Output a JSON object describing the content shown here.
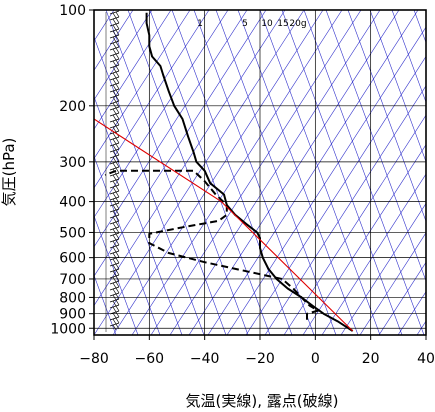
{
  "chart_data": {
    "type": "line",
    "chart_kind": "skew-T log-P thermodynamic diagram (emagram style)",
    "xlabel": "気温(実線), 露点(破線)",
    "ylabel": "気圧(hPa)",
    "x_ticks": [
      -80,
      -60,
      -40,
      -20,
      0,
      20,
      40
    ],
    "y_ticks": [
      100,
      200,
      300,
      400,
      500,
      600,
      700,
      800,
      900,
      1000
    ],
    "xlim": [
      -80,
      40
    ],
    "ylim": [
      1050,
      100
    ],
    "y_scale": "log",
    "grid": true,
    "mixing_ratio_labels": [
      "1",
      "5",
      "10",
      "15",
      "20g"
    ],
    "colors": {
      "temperature": "#000000",
      "dewpoint": "#000000",
      "parcel": "#e00000",
      "adiabats": "#3333cc",
      "grid": "#000000"
    },
    "series": [
      {
        "style": "solid",
        "points": [
          {
            "p": 1020,
            "t": 13.5
          },
          {
            "p": 1000,
            "t": 12
          },
          {
            "p": 950,
            "t": 8
          },
          {
            "p": 900,
            "t": 3
          },
          {
            "p": 850,
            "t": -1
          },
          {
            "p": 800,
            "t": -5
          },
          {
            "p": 750,
            "t": -10
          },
          {
            "p": 700,
            "t": -14
          },
          {
            "p": 650,
            "t": -17
          },
          {
            "p": 600,
            "t": -19
          },
          {
            "p": 560,
            "t": -20
          },
          {
            "p": 520,
            "t": -20
          },
          {
            "p": 500,
            "t": -21
          },
          {
            "p": 470,
            "t": -25
          },
          {
            "p": 440,
            "t": -29
          },
          {
            "p": 410,
            "t": -32
          },
          {
            "p": 380,
            "t": -33
          },
          {
            "p": 350,
            "t": -38
          },
          {
            "p": 320,
            "t": -40
          },
          {
            "p": 300,
            "t": -43
          },
          {
            "p": 280,
            "t": -44
          },
          {
            "p": 250,
            "t": -46
          },
          {
            "p": 220,
            "t": -48
          },
          {
            "p": 200,
            "t": -51
          },
          {
            "p": 180,
            "t": -53
          },
          {
            "p": 160,
            "t": -55
          },
          {
            "p": 150,
            "t": -56
          },
          {
            "p": 140,
            "t": -59
          },
          {
            "p": 130,
            "t": -60
          },
          {
            "p": 120,
            "t": -60
          },
          {
            "p": 110,
            "t": -61
          },
          {
            "p": 102,
            "t": -61
          }
        ]
      },
      {
        "style": "dashed",
        "points": [
          {
            "p": 940,
            "t": -3
          },
          {
            "p": 900,
            "t": -3
          },
          {
            "p": 880,
            "t": 1
          },
          {
            "p": 850,
            "t": -2
          },
          {
            "p": 800,
            "t": -5
          },
          {
            "p": 750,
            "t": -8
          },
          {
            "p": 700,
            "t": -12
          },
          {
            "p": 620,
            "t": -40
          },
          {
            "p": 580,
            "t": -53
          },
          {
            "p": 540,
            "t": -60
          },
          {
            "p": 505,
            "t": -60
          },
          {
            "p": 480,
            "t": -47
          },
          {
            "p": 460,
            "t": -35
          },
          {
            "p": 440,
            "t": -32
          },
          {
            "p": 410,
            "t": -32
          },
          {
            "p": 380,
            "t": -36
          },
          {
            "p": 345,
            "t": -40
          },
          {
            "p": 320,
            "t": -44
          },
          {
            "p": 320,
            "t": -72
          },
          {
            "p": 330,
            "t": -76
          }
        ]
      },
      {
        "style": "parcel",
        "points": [
          {
            "p": 1020,
            "t": 13.5
          },
          {
            "p": 400,
            "t": -34
          },
          {
            "p": 220,
            "t": -80
          }
        ]
      }
    ]
  }
}
